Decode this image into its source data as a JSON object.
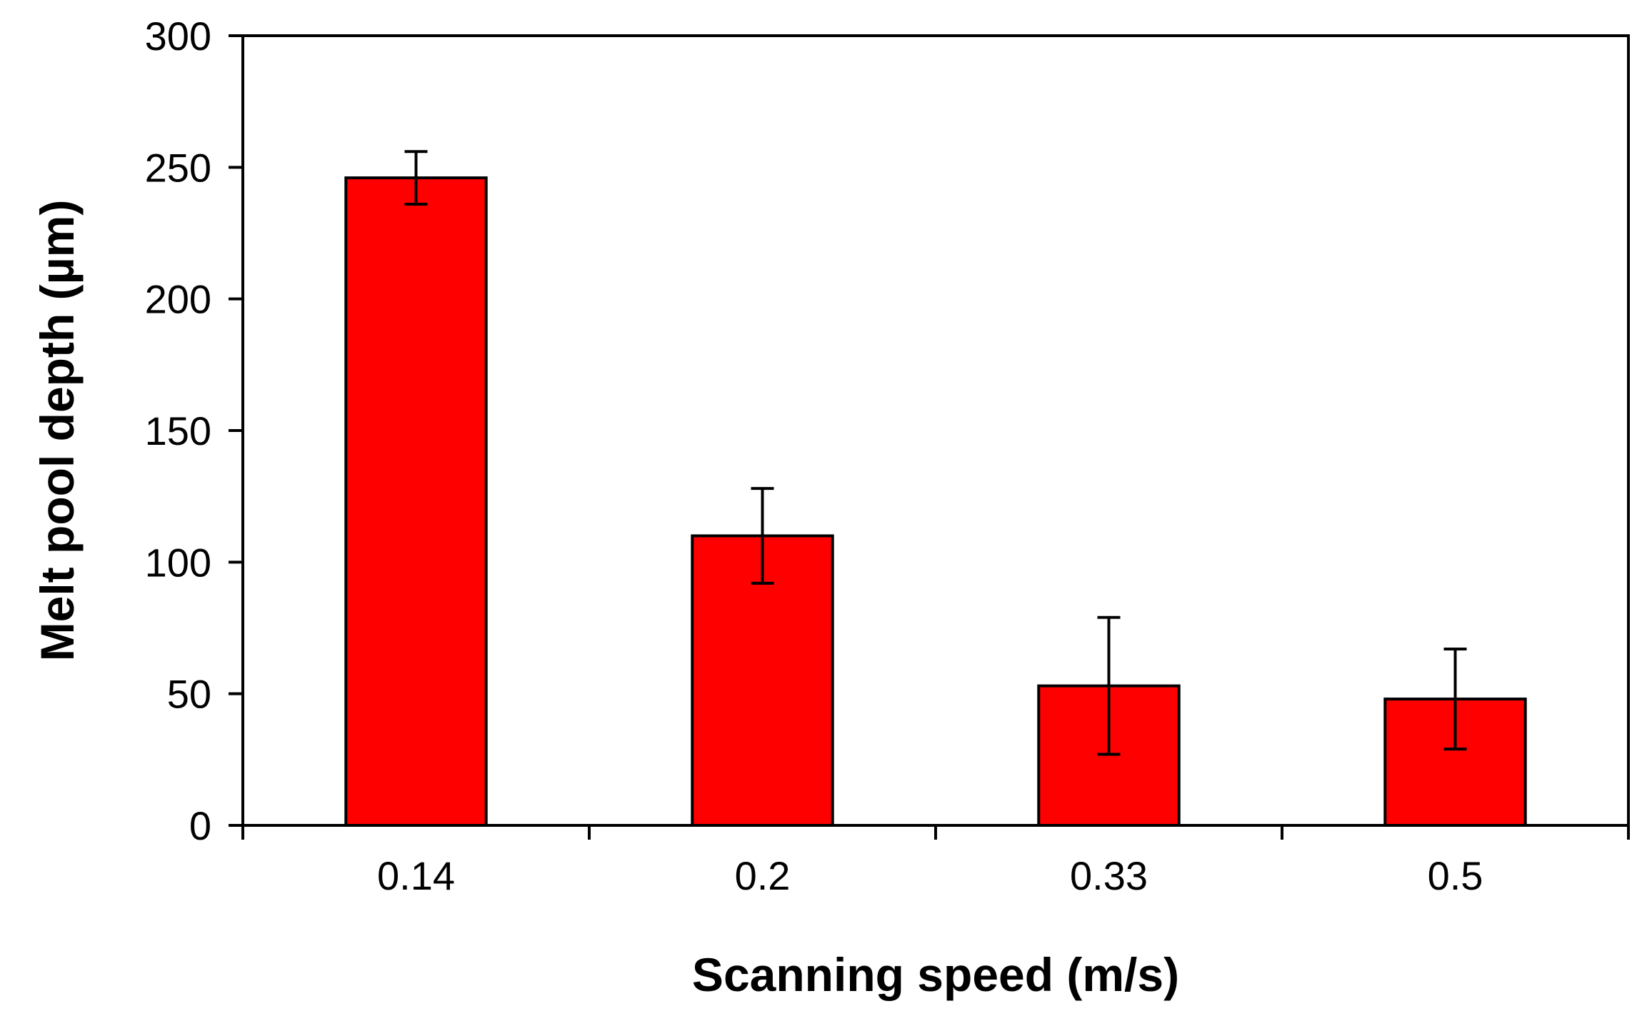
{
  "chart_data": {
    "type": "bar",
    "title": "",
    "xlabel": "Scanning speed (m/s)",
    "ylabel": "Melt pool depth (µm)",
    "categories": [
      "0.14",
      "0.2",
      "0.33",
      "0.5"
    ],
    "values": [
      246,
      110,
      53,
      48
    ],
    "error_lower": [
      10,
      18,
      26,
      19
    ],
    "error_upper": [
      10,
      18,
      26,
      19
    ],
    "ylim": [
      0,
      300
    ],
    "yticks": [
      0,
      50,
      100,
      150,
      200,
      250,
      300
    ],
    "grid": false,
    "legend": "none",
    "colors": {
      "bar_fill": "#ff0000",
      "bar_stroke": "#000000",
      "axis": "#000000",
      "error_bar": "#000000"
    }
  }
}
